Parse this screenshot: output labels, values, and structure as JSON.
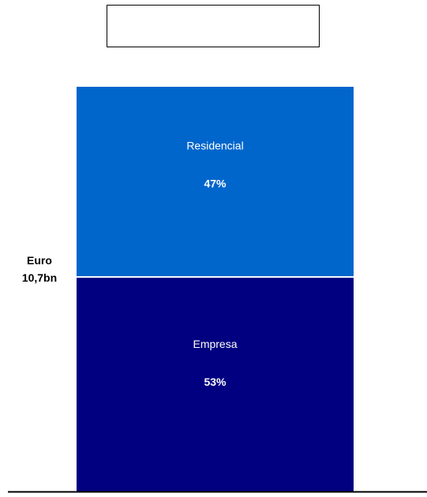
{
  "chart_data": {
    "type": "bar",
    "stacked": true,
    "title": "",
    "total_label": {
      "line1": "Euro",
      "line2": "10,7bn"
    },
    "segments": [
      {
        "name": "Empresa",
        "value": 53,
        "label": "53%",
        "color": "#000080"
      },
      {
        "name": "Residencial",
        "value": 47,
        "label": "47%",
        "color": "#0066CC"
      }
    ],
    "ylim": [
      0,
      100
    ],
    "grid": false,
    "legend": "none"
  }
}
